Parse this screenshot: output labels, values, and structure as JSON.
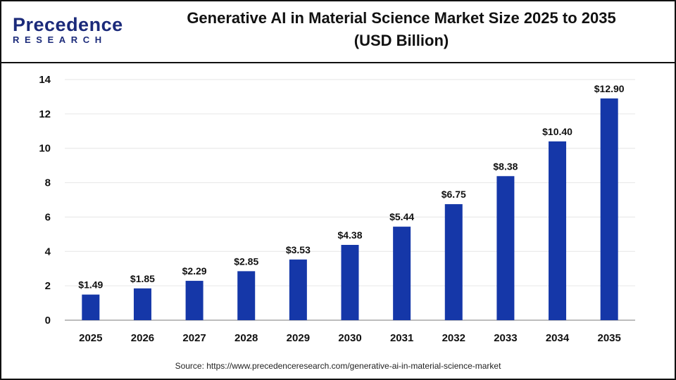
{
  "logo": {
    "line1": "Precedence",
    "line2": "RESEARCH"
  },
  "title_line1": "Generative AI in Material Science Market Size 2025 to 2035",
  "title_line2": "(USD Billion)",
  "source": "Source: https://www.precedenceresearch.com/generative-ai-in-material-science-market",
  "chart_data": {
    "type": "bar",
    "title": "Generative AI in Material Science Market Size 2025 to 2035 (USD Billion)",
    "categories": [
      "2025",
      "2026",
      "2027",
      "2028",
      "2029",
      "2030",
      "2031",
      "2032",
      "2033",
      "2034",
      "2035"
    ],
    "values": [
      1.49,
      1.85,
      2.29,
      2.85,
      3.53,
      4.38,
      5.44,
      6.75,
      8.38,
      10.4,
      12.9
    ],
    "data_labels": [
      "$1.49",
      "$1.85",
      "$2.29",
      "$2.85",
      "$3.53",
      "$4.38",
      "$5.44",
      "$6.75",
      "$8.38",
      "$10.40",
      "$12.90"
    ],
    "ylim": [
      0,
      14
    ],
    "yticks": [
      0,
      2,
      4,
      6,
      8,
      10,
      12,
      14
    ],
    "grid": true,
    "bar_color": "#1537a8"
  }
}
